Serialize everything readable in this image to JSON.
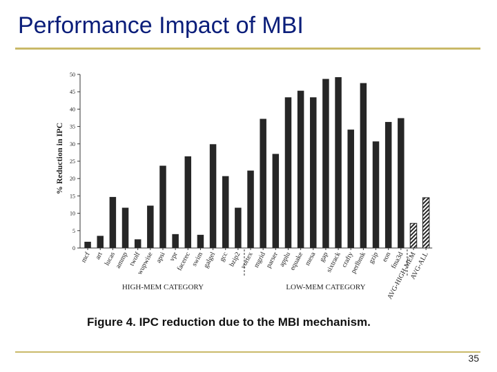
{
  "slide": {
    "title": "Performance Impact of MBI",
    "number": "35"
  },
  "colors": {
    "title": "#0b1e7a",
    "rule": "#c9b968",
    "bar": "#262626"
  },
  "chart_data": {
    "type": "bar",
    "title": "",
    "caption": "Figure 4. IPC reduction due to the MBI mechanism.",
    "xlabel": "",
    "ylabel": "% Reduction in IPC",
    "ylim": [
      0,
      50
    ],
    "yticks": [
      0,
      5,
      10,
      15,
      20,
      25,
      30,
      35,
      40,
      45,
      50
    ],
    "grid": false,
    "categories": [
      "mcf",
      "art",
      "lucas",
      "ammp",
      "twolf",
      "wupwise",
      "apsi",
      "vpr",
      "facerec",
      "swim",
      "galgel",
      "gcc",
      "bzip2",
      "vortex",
      "mgrid",
      "parser",
      "applu",
      "equake",
      "mesa",
      "gap",
      "sixtrack",
      "crafty",
      "perlbmk",
      "gzip",
      "eon",
      "fma3d",
      "AVG-HIGH-MEM",
      "AVG-ALL"
    ],
    "values": [
      1.8,
      3.5,
      14.7,
      11.6,
      2.5,
      12.2,
      23.7,
      4.0,
      26.4,
      3.8,
      29.9,
      20.7,
      11.6,
      22.3,
      37.2,
      27.1,
      43.4,
      45.3,
      43.4,
      48.7,
      49.2,
      34.1,
      47.5,
      30.7,
      36.3,
      37.4,
      7.1,
      14.5
    ],
    "hatched": [
      "AVG-HIGH-MEM",
      "AVG-ALL"
    ],
    "groups": [
      {
        "label": "HIGH-MEM CATEGORY",
        "from": "mcf",
        "to": "bzip2"
      },
      {
        "label": "LOW-MEM CATEGORY",
        "from": "vortex",
        "to": "fma3d"
      }
    ]
  }
}
